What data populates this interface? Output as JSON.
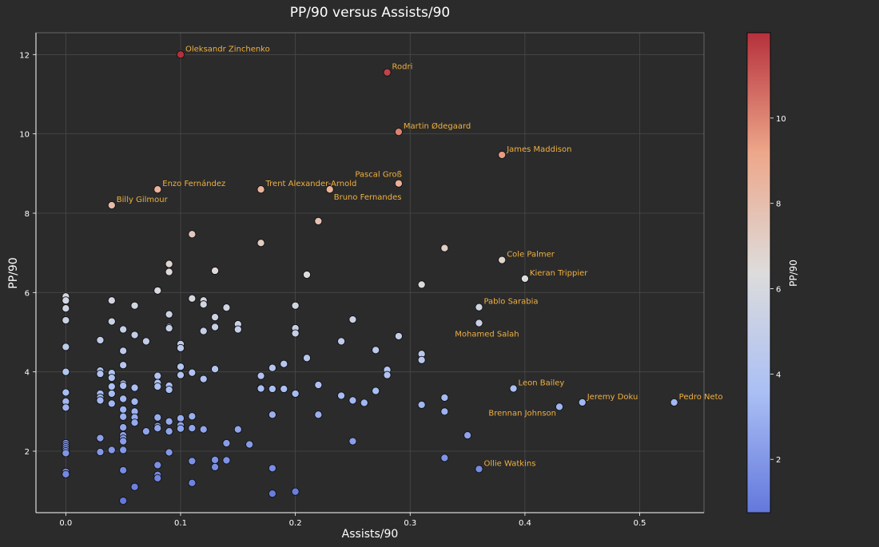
{
  "chart_data": {
    "type": "scatter",
    "title": "PP/90 versus Assists/90",
    "xlabel": "Assists/90",
    "ylabel": "PP/90",
    "xlim": [
      -0.026,
      0.556
    ],
    "ylim": [
      0.45,
      12.55
    ],
    "x_ticks": [
      0.0,
      0.1,
      0.2,
      0.3,
      0.4,
      0.5
    ],
    "y_ticks": [
      2,
      4,
      6,
      8,
      10,
      12
    ],
    "grid": true,
    "colorbar": {
      "label": "PP/90",
      "range": [
        0.75,
        12.0
      ],
      "ticks": [
        2,
        4,
        6,
        8,
        10
      ],
      "colormap": "coolwarm"
    },
    "annotations": [
      {
        "text": "Oleksandr Zinchenko",
        "x": 0.1,
        "y": 12.0,
        "pos": "upper-right"
      },
      {
        "text": "Rodri",
        "x": 0.28,
        "y": 11.55,
        "pos": "upper-right"
      },
      {
        "text": "Martin Ødegaard",
        "x": 0.29,
        "y": 10.05,
        "pos": "upper-right"
      },
      {
        "text": "James Maddison",
        "x": 0.38,
        "y": 9.47,
        "pos": "upper-right"
      },
      {
        "text": "Pascal Groß",
        "x": 0.29,
        "y": 8.75,
        "pos": "upper-left"
      },
      {
        "text": "Enzo Fernández",
        "x": 0.08,
        "y": 8.6,
        "pos": "upper-right"
      },
      {
        "text": "Trent Alexander-Arnold",
        "x": 0.17,
        "y": 8.6,
        "pos": "upper-right"
      },
      {
        "text": "Bruno Fernandes",
        "x": 0.23,
        "y": 8.6,
        "pos": "lower-right"
      },
      {
        "text": "Billy Gilmour",
        "x": 0.04,
        "y": 8.2,
        "pos": "upper-right"
      },
      {
        "text": "Cole Palmer",
        "x": 0.38,
        "y": 6.82,
        "pos": "upper-right"
      },
      {
        "text": "Kieran Trippier",
        "x": 0.4,
        "y": 6.35,
        "pos": "upper-right"
      },
      {
        "text": "Pablo Sarabia",
        "x": 0.36,
        "y": 5.63,
        "pos": "upper-right"
      },
      {
        "text": "Mohamed Salah",
        "x": 0.36,
        "y": 5.23,
        "pos": "lower-center"
      },
      {
        "text": "Leon Bailey",
        "x": 0.39,
        "y": 3.58,
        "pos": "upper-right"
      },
      {
        "text": "Jeremy Doku",
        "x": 0.45,
        "y": 3.23,
        "pos": "upper-right"
      },
      {
        "text": "Pedro Neto",
        "x": 0.53,
        "y": 3.23,
        "pos": "upper-right"
      },
      {
        "text": "Brennan Johnson",
        "x": 0.43,
        "y": 3.12,
        "pos": "lower-left"
      },
      {
        "text": "Ollie Watkins",
        "x": 0.36,
        "y": 1.55,
        "pos": "upper-right"
      }
    ],
    "points": [
      [
        0.1,
        12.0
      ],
      [
        0.28,
        11.55
      ],
      [
        0.29,
        10.05
      ],
      [
        0.38,
        9.47
      ],
      [
        0.29,
        8.75
      ],
      [
        0.08,
        8.6
      ],
      [
        0.17,
        8.6
      ],
      [
        0.23,
        8.6
      ],
      [
        0.04,
        8.2
      ],
      [
        0.22,
        7.8
      ],
      [
        0.11,
        7.47
      ],
      [
        0.17,
        7.25
      ],
      [
        0.33,
        7.12
      ],
      [
        0.38,
        6.82
      ],
      [
        0.09,
        6.72
      ],
      [
        0.09,
        6.52
      ],
      [
        0.13,
        6.55
      ],
      [
        0.21,
        6.45
      ],
      [
        0.4,
        6.35
      ],
      [
        0.31,
        6.2
      ],
      [
        0.08,
        6.05
      ],
      [
        0.36,
        5.63
      ],
      [
        0.36,
        5.23
      ],
      [
        0.0,
        5.9
      ],
      [
        0.0,
        5.8
      ],
      [
        0.0,
        5.6
      ],
      [
        0.0,
        5.3
      ],
      [
        0.04,
        5.8
      ],
      [
        0.06,
        5.67
      ],
      [
        0.11,
        5.85
      ],
      [
        0.12,
        5.8
      ],
      [
        0.12,
        5.7
      ],
      [
        0.14,
        5.62
      ],
      [
        0.2,
        5.67
      ],
      [
        0.09,
        5.45
      ],
      [
        0.13,
        5.38
      ],
      [
        0.04,
        5.27
      ],
      [
        0.25,
        5.32
      ],
      [
        0.09,
        5.13
      ],
      [
        0.09,
        5.1
      ],
      [
        0.13,
        5.13
      ],
      [
        0.15,
        5.2
      ],
      [
        0.15,
        5.07
      ],
      [
        0.05,
        5.07
      ],
      [
        0.12,
        5.03
      ],
      [
        0.2,
        5.1
      ],
      [
        0.2,
        4.97
      ],
      [
        0.06,
        4.93
      ],
      [
        0.29,
        4.9
      ],
      [
        0.03,
        4.8
      ],
      [
        0.07,
        4.77
      ],
      [
        0.24,
        4.77
      ],
      [
        0.1,
        4.7
      ],
      [
        0.1,
        4.6
      ],
      [
        0.0,
        4.63
      ],
      [
        0.05,
        4.53
      ],
      [
        0.27,
        4.55
      ],
      [
        0.31,
        4.45
      ],
      [
        0.31,
        4.3
      ],
      [
        0.21,
        4.35
      ],
      [
        0.19,
        4.2
      ],
      [
        0.05,
        4.17
      ],
      [
        0.1,
        4.13
      ],
      [
        0.13,
        4.07
      ],
      [
        0.18,
        4.1
      ],
      [
        0.28,
        4.05
      ],
      [
        0.28,
        3.92
      ],
      [
        0.0,
        4.0
      ],
      [
        0.03,
        4.03
      ],
      [
        0.03,
        3.95
      ],
      [
        0.04,
        3.97
      ],
      [
        0.11,
        3.98
      ],
      [
        0.1,
        3.92
      ],
      [
        0.08,
        3.9
      ],
      [
        0.04,
        3.85
      ],
      [
        0.12,
        3.82
      ],
      [
        0.17,
        3.9
      ],
      [
        0.05,
        3.7
      ],
      [
        0.05,
        3.65
      ],
      [
        0.08,
        3.72
      ],
      [
        0.08,
        3.63
      ],
      [
        0.09,
        3.65
      ],
      [
        0.09,
        3.55
      ],
      [
        0.04,
        3.63
      ],
      [
        0.06,
        3.6
      ],
      [
        0.17,
        3.6
      ],
      [
        0.17,
        3.58
      ],
      [
        0.18,
        3.57
      ],
      [
        0.19,
        3.57
      ],
      [
        0.22,
        3.67
      ],
      [
        0.27,
        3.52
      ],
      [
        0.0,
        3.48
      ],
      [
        0.03,
        3.45
      ],
      [
        0.04,
        3.45
      ],
      [
        0.03,
        3.35
      ],
      [
        0.03,
        3.28
      ],
      [
        0.05,
        3.32
      ],
      [
        0.2,
        3.45
      ],
      [
        0.24,
        3.4
      ],
      [
        0.25,
        3.28
      ],
      [
        0.26,
        3.22
      ],
      [
        0.33,
        3.35
      ],
      [
        0.31,
        3.17
      ],
      [
        0.0,
        3.25
      ],
      [
        0.0,
        3.1
      ],
      [
        0.04,
        3.2
      ],
      [
        0.06,
        3.25
      ],
      [
        0.05,
        3.05
      ],
      [
        0.06,
        3.0
      ],
      [
        0.05,
        2.87
      ],
      [
        0.06,
        2.85
      ],
      [
        0.08,
        2.85
      ],
      [
        0.1,
        2.83
      ],
      [
        0.11,
        2.88
      ],
      [
        0.18,
        2.92
      ],
      [
        0.22,
        2.92
      ],
      [
        0.33,
        3.0
      ],
      [
        0.06,
        2.72
      ],
      [
        0.09,
        2.75
      ],
      [
        0.1,
        2.65
      ],
      [
        0.08,
        2.63
      ],
      [
        0.08,
        2.58
      ],
      [
        0.1,
        2.57
      ],
      [
        0.05,
        2.6
      ],
      [
        0.11,
        2.58
      ],
      [
        0.12,
        2.55
      ],
      [
        0.15,
        2.55
      ],
      [
        0.07,
        2.5
      ],
      [
        0.09,
        2.5
      ],
      [
        0.05,
        2.4
      ],
      [
        0.05,
        2.32
      ],
      [
        0.03,
        2.33
      ],
      [
        0.05,
        2.25
      ],
      [
        0.14,
        2.2
      ],
      [
        0.16,
        2.17
      ],
      [
        0.25,
        2.25
      ],
      [
        0.35,
        2.4
      ],
      [
        0.0,
        2.2
      ],
      [
        0.0,
        2.15
      ],
      [
        0.0,
        2.1
      ],
      [
        0.0,
        2.05
      ],
      [
        0.0,
        2.0
      ],
      [
        0.0,
        1.95
      ],
      [
        0.03,
        1.98
      ],
      [
        0.04,
        2.03
      ],
      [
        0.05,
        2.03
      ],
      [
        0.09,
        1.97
      ],
      [
        0.11,
        1.75
      ],
      [
        0.13,
        1.78
      ],
      [
        0.14,
        1.77
      ],
      [
        0.13,
        1.6
      ],
      [
        0.08,
        1.65
      ],
      [
        0.05,
        1.52
      ],
      [
        0.18,
        1.57
      ],
      [
        0.33,
        1.83
      ],
      [
        0.36,
        1.55
      ],
      [
        0.0,
        1.48
      ],
      [
        0.0,
        1.42
      ],
      [
        0.08,
        1.4
      ],
      [
        0.08,
        1.32
      ],
      [
        0.11,
        1.2
      ],
      [
        0.06,
        1.1
      ],
      [
        0.18,
        0.93
      ],
      [
        0.2,
        0.98
      ],
      [
        0.05,
        0.75
      ],
      [
        0.39,
        3.58
      ],
      [
        0.45,
        3.23
      ],
      [
        0.53,
        3.23
      ],
      [
        0.43,
        3.12
      ]
    ]
  }
}
